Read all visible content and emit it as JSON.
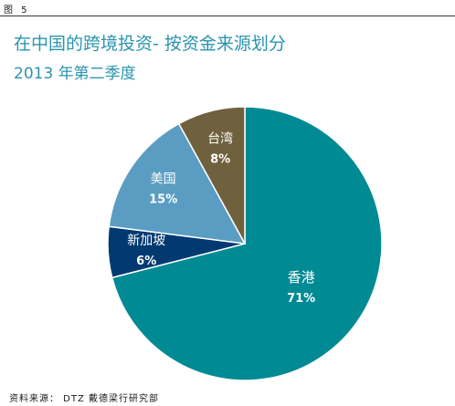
{
  "figure_label": "图 5",
  "source": "资料来源： DTZ 戴德梁行研究部",
  "chart_data": {
    "type": "pie",
    "title": "在中国的跨境投资- 按资金来源划分",
    "subtitle": "2013  年第二季度",
    "categories": [
      "香港",
      "新加坡",
      "美国",
      "台湾"
    ],
    "values": [
      71,
      6,
      15,
      8
    ],
    "labels": [
      "71%",
      "6%",
      "15%",
      "8%"
    ],
    "colors": [
      "#008a93",
      "#003a70",
      "#5b9dc2",
      "#70613e"
    ],
    "unit": "%",
    "start_angle_deg": 0,
    "direction": "clockwise"
  }
}
